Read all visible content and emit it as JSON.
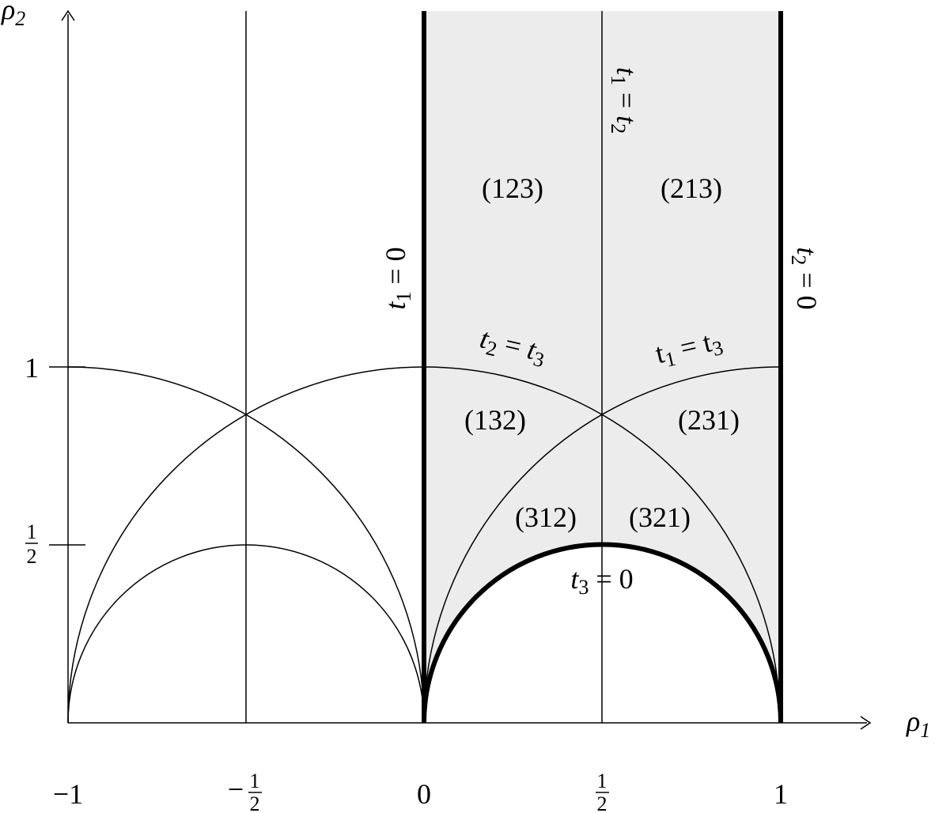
{
  "axes": {
    "x_label": "ρ",
    "x_label_sub": "1",
    "y_label": "ρ",
    "y_label_sub": "2"
  },
  "x_ticks": [
    {
      "text": "−1"
    },
    {
      "sign": "−",
      "num": "1",
      "den": "2"
    },
    {
      "text": "0"
    },
    {
      "num": "1",
      "den": "2"
    },
    {
      "text": "1"
    }
  ],
  "y_ticks": [
    {
      "text": "1"
    },
    {
      "num": "1",
      "den": "2"
    }
  ],
  "regions": [
    {
      "text": "(123)"
    },
    {
      "text": "(213)"
    },
    {
      "text": "(132)"
    },
    {
      "text": "(231)"
    },
    {
      "text": "(312)"
    },
    {
      "text": "(321)"
    }
  ],
  "boundary_labels": {
    "t1_zero": {
      "t": "t",
      "sub": "1",
      "rel": " = 0"
    },
    "t2_zero": {
      "t": "t",
      "sub": "2",
      "rel": " = 0"
    },
    "t3_zero": {
      "t": "t",
      "sub": "3",
      "rel": " = 0"
    },
    "t1_eq_t2": {
      "t": "t",
      "sub": "1",
      "rel": " = ",
      "t2": "t",
      "sub2": "2"
    },
    "t2_eq_t3": {
      "t": "t",
      "sub": "2",
      "rel": " = ",
      "t2": "t",
      "sub2": "3"
    },
    "t1_eq_t3": {
      "t": "t",
      "sub": "1",
      "rel": " = ",
      "t2": "t",
      "sub2": "3"
    }
  },
  "colors": {
    "shade": "#ececec",
    "ink": "#000000"
  }
}
